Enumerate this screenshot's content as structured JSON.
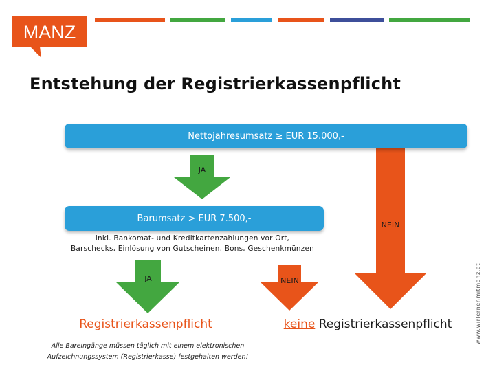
{
  "brand": {
    "logo_text": "MANZ",
    "logo_color": "#e8541a",
    "bar_colors": [
      "#e8541a",
      "#43a740",
      "#2a9fd9",
      "#e8541a",
      "#3d4f9a",
      "#43a740"
    ]
  },
  "title": "Entstehung der Registrierkassenpflicht",
  "diagram": {
    "box1_text": "Nettojahresumsatz ≥ EUR 15.000,-",
    "box2_text": "Barumsatz > EUR 7.500,-",
    "ja_label_1": "JA",
    "ja_label_2": "JA",
    "nein_label_1": "NEIN",
    "nein_label_2": "NEIN",
    "note_line1": "inkl. Bankomat- und Kreditkartenzahlungen vor Ort,",
    "note_line2": "Barschecks, Einlösung von Gutscheinen, Bons, Geschenkmünzen",
    "result_yes": "Registrierkassenpflicht",
    "result_no_prefix": "keine",
    "result_no_suffix": " Registrierkassenpflicht",
    "footnote_line1": "Alle Bareingänge müssen täglich mit einem elektronischen",
    "footnote_line2": "Aufzeichnungssystem (Registrierkasse) festgehalten werden!",
    "colors": {
      "box": "#2a9fd9",
      "yes_arrow": "#43a740",
      "no_arrow": "#e8541a"
    }
  },
  "website": "www.wirlernenmitmanz.at"
}
